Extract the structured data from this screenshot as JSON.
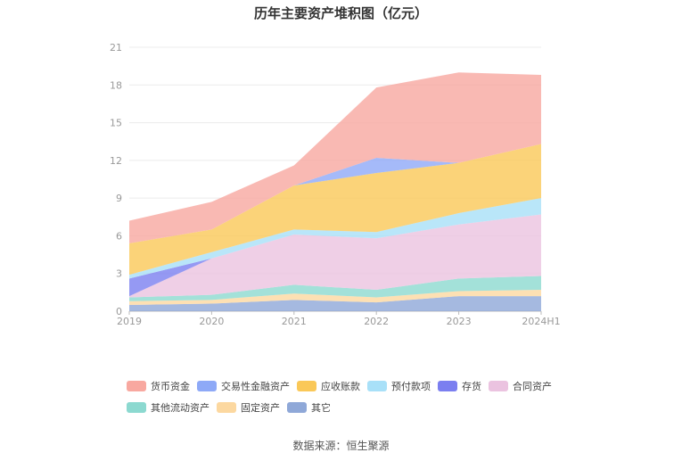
{
  "chart_data": {
    "type": "area",
    "stacked": true,
    "title": "历年主要资产堆积图（亿元）",
    "categories": [
      "2019",
      "2020",
      "2021",
      "2022",
      "2023",
      "2024H1"
    ],
    "ylim": [
      0,
      21
    ],
    "yticks": [
      0,
      3,
      6,
      9,
      12,
      15,
      18,
      21
    ],
    "grid": true,
    "legend_position": "bottom",
    "series": [
      {
        "name": "其它",
        "color": "#8fa8d8",
        "values": [
          0.5,
          0.6,
          0.9,
          0.7,
          1.2,
          1.2
        ]
      },
      {
        "name": "固定资产",
        "color": "#fcd8a0",
        "values": [
          0.3,
          0.3,
          0.5,
          0.4,
          0.4,
          0.5
        ]
      },
      {
        "name": "其他流动资产",
        "color": "#8cd9d0",
        "values": [
          0.3,
          0.4,
          0.7,
          0.6,
          1.0,
          1.1
        ]
      },
      {
        "name": "合同资产",
        "color": "#ebc3e0",
        "values": [
          0.1,
          2.9,
          4.0,
          4.1,
          4.3,
          4.9
        ]
      },
      {
        "name": "存货",
        "color": "#7b7ff0",
        "values": [
          1.4,
          0.0,
          0.0,
          0.0,
          0.0,
          0.0
        ]
      },
      {
        "name": "预付款项",
        "color": "#a8e0f8",
        "values": [
          0.3,
          0.5,
          0.4,
          0.5,
          0.9,
          1.3
        ]
      },
      {
        "name": "应收账款",
        "color": "#fac858",
        "values": [
          2.5,
          1.8,
          3.5,
          4.7,
          4.0,
          4.3
        ]
      },
      {
        "name": "交易性金融资产",
        "color": "#8ea9f7",
        "values": [
          0.0,
          0.0,
          0.0,
          1.2,
          0.0,
          0.0
        ]
      },
      {
        "name": "货币资金",
        "color": "#f8a8a0",
        "values": [
          1.8,
          2.2,
          1.6,
          5.6,
          7.2,
          5.5
        ]
      }
    ],
    "legend_order": [
      "货币资金",
      "交易性金融资产",
      "应收账款",
      "预付款项",
      "存货",
      "合同资产",
      "其他流动资产",
      "固定资产",
      "其它"
    ]
  },
  "source": "数据来源：恒生聚源"
}
